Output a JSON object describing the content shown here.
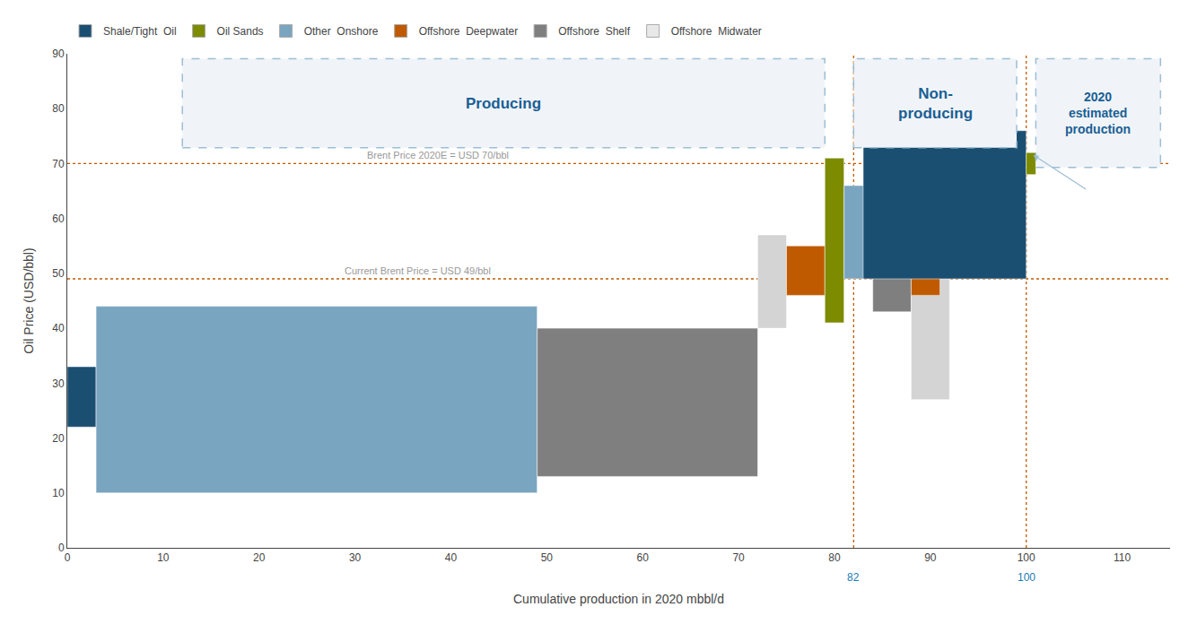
{
  "chart_data": {
    "type": "bar",
    "xlabel": "Cumulative production in 2020 mbbl/d",
    "ylabel": "Oil Price (USD/bbl)",
    "xlim": [
      0,
      115
    ],
    "ylim": [
      0,
      90
    ],
    "xticks": [
      0,
      10,
      20,
      30,
      40,
      50,
      60,
      70,
      80,
      90,
      100,
      110
    ],
    "yticks": [
      0,
      10,
      20,
      30,
      40,
      50,
      60,
      70,
      80,
      90
    ],
    "grid": false,
    "legend": "upper left",
    "series": [
      {
        "name": "Shale/Tight  Oil",
        "color": "#1b4f72"
      },
      {
        "name": "Oil Sands",
        "color": "#7d8b00"
      },
      {
        "name": "Other  Onshore",
        "color": "#7aa5c0"
      },
      {
        "name": "Offshore  Deepwater",
        "color": "#c05a00"
      },
      {
        "name": "Offshore  Shelf",
        "color": "#7f7f7f"
      },
      {
        "name": "Offshore  Midwater",
        "color": "#e8e8e8"
      }
    ],
    "bars": [
      {
        "x": [
          0,
          3
        ],
        "y": [
          22,
          33
        ],
        "color": "#1b4f72"
      },
      {
        "x": [
          3,
          49
        ],
        "y": [
          10,
          44
        ],
        "color": "#7aa5c0"
      },
      {
        "x": [
          49,
          72
        ],
        "y": [
          13,
          40
        ],
        "color": "#7f7f7f"
      },
      {
        "x": [
          72,
          75
        ],
        "y": [
          40,
          57
        ],
        "color": "#d4d4d4"
      },
      {
        "x": [
          75,
          79
        ],
        "y": [
          46,
          55
        ],
        "color": "#c05a00"
      },
      {
        "x": [
          79,
          81
        ],
        "y": [
          41,
          71
        ],
        "color": "#7d8b00"
      },
      {
        "x": [
          81,
          84
        ],
        "y": [
          49,
          66
        ],
        "color": "#7aa5c0"
      },
      {
        "x": [
          84,
          88
        ],
        "y": [
          43,
          63
        ],
        "color": "#7f7f7f"
      },
      {
        "x": [
          88,
          92
        ],
        "y": [
          27,
          63
        ],
        "color": "#d4d4d4"
      },
      {
        "x": [
          88,
          91
        ],
        "y": [
          46,
          60
        ],
        "color": "#c05a00"
      },
      {
        "x": [
          83,
          100
        ],
        "y": [
          49,
          76
        ],
        "color": "#1b4f72"
      },
      {
        "x": [
          100,
          101
        ],
        "y": [
          68,
          72
        ],
        "color": "#7d8b00"
      }
    ],
    "hlines": {
      "color": "#c05a00",
      "lines": [
        {
          "value": 70,
          "label": "Brent Price 2020E = USD 70/bbl"
        },
        {
          "value": 49,
          "label": "Current Brent Price = USD 49/bbl"
        }
      ]
    },
    "vlines": {
      "color": "#c05a00",
      "label_color": "#1a7ab4",
      "values": [
        82,
        100
      ]
    },
    "annotations": {
      "edge_color": "#9dbdd4",
      "fill_color": "#f0f4f8",
      "text_color": "#1a5f94",
      "boxes": [
        {
          "text": "Producing",
          "x": [
            12,
            79
          ]
        },
        {
          "text": "Non-\nproducing",
          "x": [
            82,
            99
          ]
        },
        {
          "text": "2020\nestimated\nproduction",
          "x": [
            101,
            114
          ]
        }
      ]
    }
  }
}
